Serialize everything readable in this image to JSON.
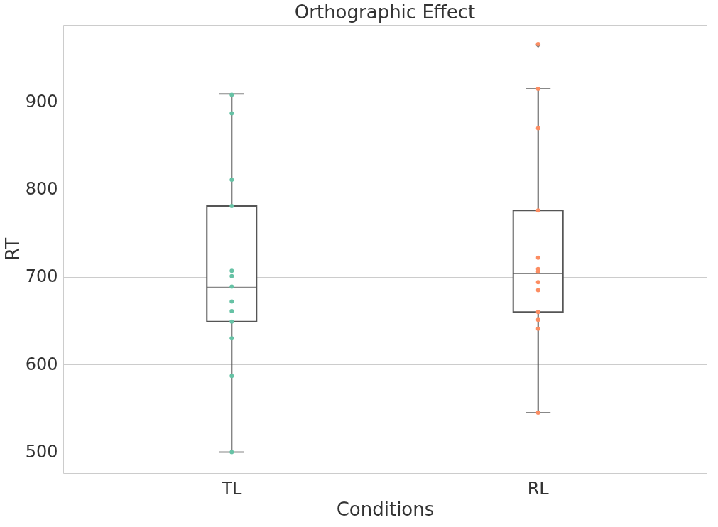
{
  "chart_data": {
    "type": "box",
    "title": "Orthographic Effect",
    "xlabel": "Conditions",
    "ylabel": "RT",
    "categories": [
      "TL",
      "RL"
    ],
    "boxes": [
      {
        "low": 500,
        "q1": 649,
        "median": 688,
        "q3": 781,
        "high": 909
      },
      {
        "low": 545,
        "q1": 660,
        "median": 704,
        "q3": 776,
        "high": 915,
        "outliers": [
          965
        ]
      }
    ],
    "series": [
      {
        "type": "scatter",
        "color": "#66c2a5",
        "marker": "circle",
        "x": [
          "TL",
          "TL",
          "TL",
          "TL",
          "TL",
          "TL",
          "TL",
          "TL",
          "TL",
          "TL",
          "TL",
          "TL",
          "TL"
        ],
        "values": [
          908,
          887,
          811,
          781,
          707,
          701,
          689,
          672,
          661,
          649,
          630,
          587,
          500
        ]
      },
      {
        "type": "scatter",
        "color": "#fc8d62",
        "marker": "circle",
        "x": [
          "RL",
          "RL",
          "RL",
          "RL",
          "RL",
          "RL",
          "RL",
          "RL",
          "RL",
          "RL",
          "RL",
          "RL",
          "RL"
        ],
        "values": [
          966,
          915,
          870,
          776,
          722,
          709,
          706,
          685,
          694,
          660,
          651,
          641,
          545
        ]
      }
    ],
    "ylim": [
      476,
      988
    ],
    "yticks": [
      500,
      600,
      700,
      800,
      900
    ],
    "grid": "y"
  }
}
